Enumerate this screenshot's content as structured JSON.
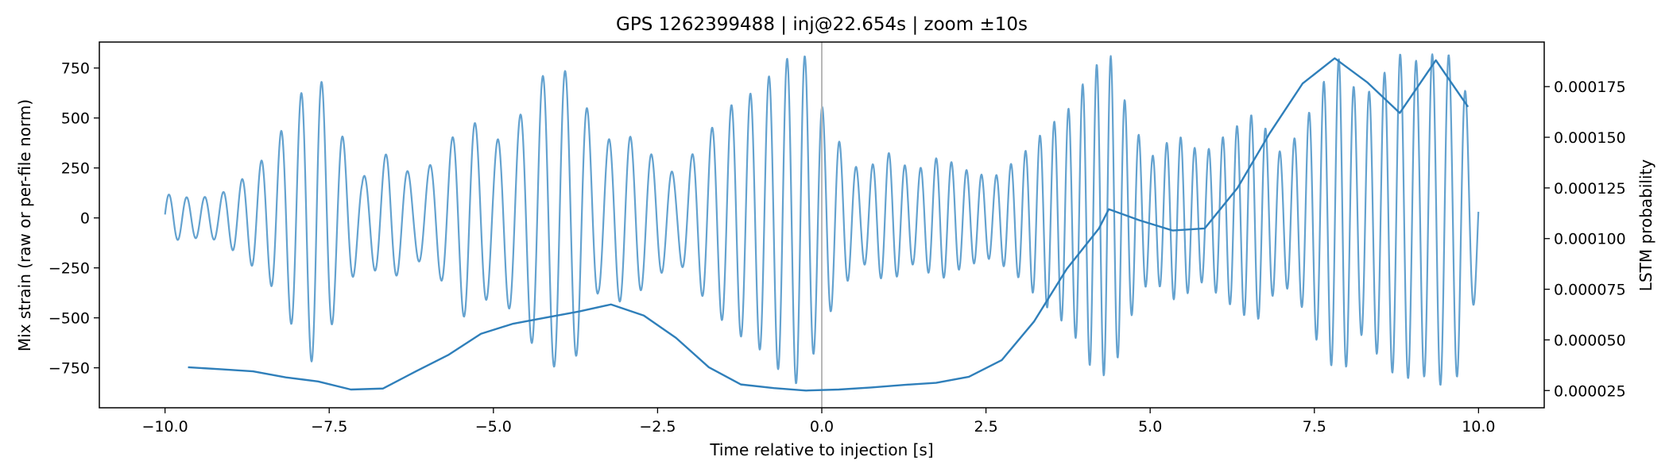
{
  "chart_data": {
    "type": "line",
    "title": "GPS 1262399488 | inj@22.654s | zoom ±10s",
    "xlabel": "Time relative to injection [s]",
    "ylabel_left": "Mix strain (raw or per-file norm)",
    "ylabel_right": "LSTM probability",
    "xlim": [
      -11,
      11
    ],
    "ylim_left": [
      -950,
      880
    ],
    "ylim_right": [
      1.65e-05,
      0.000197
    ],
    "xticks": [
      -10.0,
      -7.5,
      -5.0,
      -2.5,
      0.0,
      2.5,
      5.0,
      7.5,
      10.0
    ],
    "xtick_labels": [
      "−10.0",
      "−7.5",
      "−5.0",
      "−2.5",
      "0.0",
      "2.5",
      "5.0",
      "7.5",
      "10.0"
    ],
    "yticks_left": [
      -750,
      -500,
      -250,
      0,
      250,
      500,
      750
    ],
    "ytick_labels_left": [
      "−750",
      "−500",
      "−250",
      "0",
      "250",
      "500",
      "750"
    ],
    "yticks_right": [
      2.5e-05,
      5e-05,
      7.5e-05,
      0.0001,
      0.000125,
      0.00015,
      0.000175
    ],
    "ytick_labels_right": [
      "0.000025",
      "0.000050",
      "0.000075",
      "0.000100",
      "0.000125",
      "0.000150",
      "0.000175"
    ],
    "grid": false,
    "injection_marker_x": 0.0,
    "strain_series": {
      "axis": "left",
      "color": "#4f95c8",
      "x_range": [
        -10.0,
        10.0
      ],
      "envelope": {
        "t": [
          -10,
          -9.6,
          -9.2,
          -8.8,
          -8.4,
          -8.0,
          -7.7,
          -7.4,
          -7.0,
          -6.6,
          -6.2,
          -5.8,
          -5.4,
          -5.0,
          -4.6,
          -4.3,
          -4.0,
          -3.7,
          -3.4,
          -3.0,
          -2.6,
          -2.2,
          -1.8,
          -1.4,
          -1.0,
          -0.6,
          -0.3,
          0.0,
          0.3,
          0.6,
          1.0,
          1.4,
          1.8,
          2.2,
          2.6,
          3.0,
          3.4,
          3.8,
          4.1,
          4.4,
          4.7,
          5.0,
          5.4,
          5.8,
          6.2,
          6.6,
          7.0,
          7.3,
          7.6,
          7.9,
          8.2,
          8.5,
          8.8,
          9.1,
          9.4,
          9.7,
          10.0
        ],
        "a": [
          120,
          100,
          110,
          200,
          330,
          580,
          760,
          480,
          200,
          330,
          200,
          310,
          520,
          370,
          510,
          700,
          760,
          680,
          370,
          430,
          320,
          210,
          400,
          560,
          640,
          780,
          850,
          560,
          360,
          220,
          330,
          230,
          310,
          240,
          200,
          300,
          440,
          560,
          750,
          810,
          500,
          300,
          420,
          320,
          430,
          530,
          320,
          440,
          660,
          810,
          580,
          700,
          820,
          780,
          840,
          790,
          320
        ]
      },
      "carrier": {
        "freq_base": 3.8,
        "freq_amp": 0.9,
        "freq_mod": 0.31,
        "sample_step": 0.006
      }
    },
    "lstm_series": {
      "axis": "right",
      "color": "#2f7fba",
      "x": [
        -9.65,
        -9.15,
        -8.66,
        -8.16,
        -7.67,
        -7.17,
        -6.68,
        -6.18,
        -5.69,
        -5.19,
        -4.7,
        -4.2,
        -3.7,
        -3.21,
        -2.71,
        -2.22,
        -1.72,
        -1.23,
        -0.73,
        -0.24,
        0.26,
        0.75,
        1.25,
        1.74,
        2.24,
        2.74,
        3.23,
        3.73,
        4.22,
        4.37,
        4.84,
        5.34,
        5.83,
        6.33,
        6.82,
        7.32,
        7.81,
        8.31,
        8.8,
        9.35,
        9.84
      ],
      "y": [
        3.65e-05,
        3.55e-05,
        3.45e-05,
        3.15e-05,
        2.95e-05,
        2.55e-05,
        2.6e-05,
        3.45e-05,
        4.25e-05,
        5.3e-05,
        5.8e-05,
        6.1e-05,
        6.4e-05,
        6.75e-05,
        6.2e-05,
        5.1e-05,
        3.65e-05,
        2.8e-05,
        2.62e-05,
        2.5e-05,
        2.55e-05,
        2.65e-05,
        2.78e-05,
        2.88e-05,
        3.18e-05,
        4e-05,
        5.9e-05,
        8.5e-05,
        0.000105,
        0.0001145,
        0.000109,
        0.000104,
        0.000105,
        0.000125,
        0.000152,
        0.0001765,
        0.000189,
        0.000177,
        0.000162,
        0.000188,
        0.000165
      ]
    }
  }
}
